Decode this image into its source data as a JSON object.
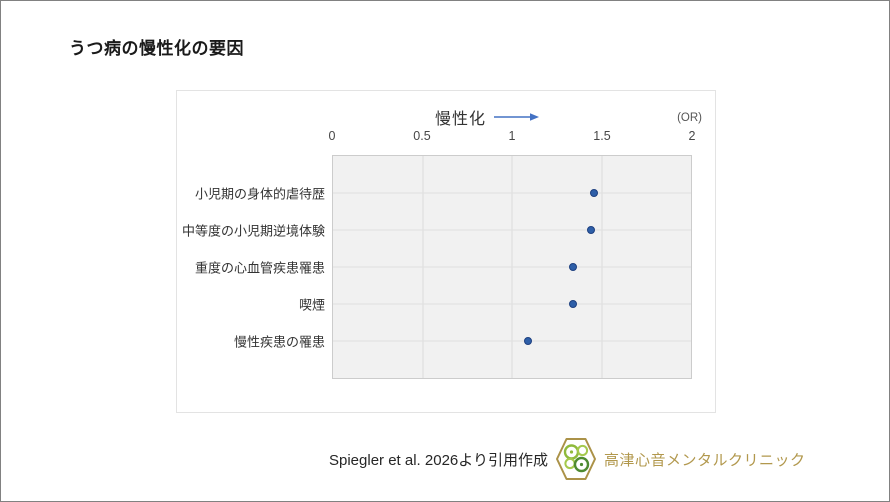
{
  "page": {
    "title": "うつ病の慢性化の要因"
  },
  "chart_data": {
    "type": "scatter",
    "variant": "horizontal-dot-plot",
    "axis_title": "慢性化",
    "axis_unit_label": "(OR)",
    "xlim": [
      0,
      2
    ],
    "x_ticks": [
      0,
      0.5,
      1,
      1.5,
      2
    ],
    "categories": [
      "小児期の身体的虐待歴",
      "中等度の小児期逆境体験",
      "重度の心血管疾患罹患",
      "喫煙",
      "慢性疾患の罹患"
    ],
    "values": [
      1.46,
      1.44,
      1.34,
      1.34,
      1.09
    ],
    "grid": true,
    "legend": false,
    "marker_color": "#2e5fa8",
    "marker_border_color": "#1e4080",
    "arrow_color": "#4472c4",
    "plot_background": "#f1f1f1"
  },
  "footer": {
    "source": "Spiegler et al. 2026より引用作成",
    "clinic_name": "高津心音メンタルクリニック",
    "clinic_color": "#b2984d",
    "logo": "hexagon-clover-icon"
  }
}
